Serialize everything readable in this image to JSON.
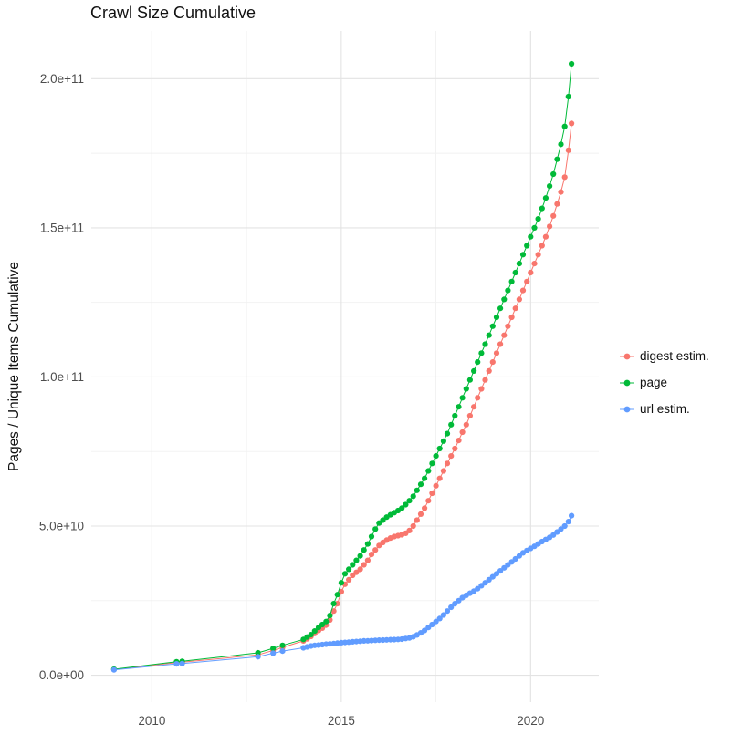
{
  "chart_data": {
    "type": "line",
    "title": "Crawl Size Cumulative",
    "xlabel": "",
    "ylabel": "Pages / Unique Items Cumulative",
    "legend_position": "right",
    "grid": true,
    "xlim": [
      2008.4,
      2021.8
    ],
    "ylim": [
      -9000000000.0,
      216000000000.0
    ],
    "x_ticks": [
      2010,
      2015,
      2020
    ],
    "x_tick_labels": [
      "2010",
      "2015",
      "2020"
    ],
    "x_minor_ticks": [
      2012.5,
      2017.5
    ],
    "y_ticks": [
      0,
      50000000000.0,
      100000000000.0,
      150000000000.0,
      200000000000.0
    ],
    "y_tick_labels": [
      "0.0e+00",
      "5.0e+10",
      "1.0e+11",
      "1.5e+11",
      "2.0e+11"
    ],
    "y_minor_ticks": [
      25000000000.0,
      75000000000.0,
      125000000000.0,
      175000000000.0
    ],
    "colors": {
      "major_grid": "#e3e3e3",
      "minor_grid": "#f1f1f1",
      "tick_label": "#4d4d4d"
    },
    "y_unit": 1000000000.0,
    "series": [
      {
        "id": "digest-estim",
        "name": "digest estim.",
        "color": "#F8766D",
        "points": [
          [
            2009.0,
            1.9
          ],
          [
            2010.65,
            4.2
          ],
          [
            2010.8,
            4.35
          ],
          [
            2012.8,
            6.8
          ],
          [
            2013.2,
            8.3
          ],
          [
            2013.45,
            9.3
          ],
          [
            2014.0,
            11.5
          ],
          [
            2014.1,
            12.2
          ],
          [
            2014.2,
            13
          ],
          [
            2014.3,
            14
          ],
          [
            2014.4,
            15
          ],
          [
            2014.5,
            15.8
          ],
          [
            2014.6,
            16.8
          ],
          [
            2014.7,
            18.5
          ],
          [
            2014.8,
            21.5
          ],
          [
            2014.9,
            24
          ],
          [
            2015.0,
            28
          ],
          [
            2015.1,
            30.5
          ],
          [
            2015.2,
            32
          ],
          [
            2015.3,
            33.5
          ],
          [
            2015.4,
            34.5
          ],
          [
            2015.5,
            35.5
          ],
          [
            2015.6,
            37
          ],
          [
            2015.7,
            38.5
          ],
          [
            2015.8,
            40.5
          ],
          [
            2015.9,
            42
          ],
          [
            2016.0,
            43.5
          ],
          [
            2016.1,
            44.5
          ],
          [
            2016.2,
            45.3
          ],
          [
            2016.3,
            46
          ],
          [
            2016.4,
            46.5
          ],
          [
            2016.5,
            46.8
          ],
          [
            2016.6,
            47.1
          ],
          [
            2016.7,
            47.6
          ],
          [
            2016.8,
            48.5
          ],
          [
            2016.9,
            50
          ],
          [
            2017.0,
            52
          ],
          [
            2017.1,
            54
          ],
          [
            2017.2,
            56
          ],
          [
            2017.3,
            58.5
          ],
          [
            2017.4,
            61
          ],
          [
            2017.5,
            63.5
          ],
          [
            2017.6,
            66
          ],
          [
            2017.7,
            68.5
          ],
          [
            2017.8,
            71
          ],
          [
            2017.9,
            73.5
          ],
          [
            2018.0,
            76
          ],
          [
            2018.1,
            78.7
          ],
          [
            2018.2,
            81.5
          ],
          [
            2018.3,
            84
          ],
          [
            2018.4,
            87
          ],
          [
            2018.5,
            90
          ],
          [
            2018.6,
            93
          ],
          [
            2018.7,
            96
          ],
          [
            2018.8,
            99
          ],
          [
            2018.9,
            102
          ],
          [
            2019.0,
            105
          ],
          [
            2019.1,
            108
          ],
          [
            2019.2,
            111
          ],
          [
            2019.3,
            114
          ],
          [
            2019.4,
            117
          ],
          [
            2019.5,
            120
          ],
          [
            2019.6,
            123
          ],
          [
            2019.7,
            126
          ],
          [
            2019.8,
            129
          ],
          [
            2019.9,
            132
          ],
          [
            2020.0,
            135
          ],
          [
            2020.1,
            138
          ],
          [
            2020.2,
            141
          ],
          [
            2020.3,
            144
          ],
          [
            2020.4,
            147
          ],
          [
            2020.5,
            150.5
          ],
          [
            2020.6,
            154
          ],
          [
            2020.7,
            158
          ],
          [
            2020.8,
            162
          ],
          [
            2020.9,
            167
          ],
          [
            2021.0,
            176
          ],
          [
            2021.08,
            185
          ]
        ]
      },
      {
        "id": "page",
        "name": "page",
        "color": "#00BA38",
        "points": [
          [
            2009.0,
            2.0
          ],
          [
            2010.65,
            4.5
          ],
          [
            2010.8,
            4.65
          ],
          [
            2012.8,
            7.5
          ],
          [
            2013.2,
            9.0
          ],
          [
            2013.45,
            10.0
          ],
          [
            2014.0,
            12
          ],
          [
            2014.1,
            12.8
          ],
          [
            2014.2,
            13.6
          ],
          [
            2014.3,
            14.8
          ],
          [
            2014.4,
            16
          ],
          [
            2014.5,
            17
          ],
          [
            2014.6,
            18
          ],
          [
            2014.7,
            20
          ],
          [
            2014.8,
            24
          ],
          [
            2014.9,
            27
          ],
          [
            2015.0,
            31
          ],
          [
            2015.1,
            34
          ],
          [
            2015.2,
            35.5
          ],
          [
            2015.3,
            37
          ],
          [
            2015.4,
            38.5
          ],
          [
            2015.5,
            40
          ],
          [
            2015.6,
            42
          ],
          [
            2015.7,
            44
          ],
          [
            2015.8,
            46.5
          ],
          [
            2015.9,
            49
          ],
          [
            2016.0,
            51
          ],
          [
            2016.1,
            52
          ],
          [
            2016.2,
            53
          ],
          [
            2016.3,
            53.8
          ],
          [
            2016.4,
            54.5
          ],
          [
            2016.5,
            55.2
          ],
          [
            2016.6,
            56
          ],
          [
            2016.7,
            57.2
          ],
          [
            2016.8,
            58.5
          ],
          [
            2016.9,
            60
          ],
          [
            2017.0,
            62
          ],
          [
            2017.1,
            64
          ],
          [
            2017.2,
            66
          ],
          [
            2017.3,
            68.5
          ],
          [
            2017.4,
            71
          ],
          [
            2017.5,
            73.5
          ],
          [
            2017.6,
            76
          ],
          [
            2017.7,
            78.5
          ],
          [
            2017.8,
            81
          ],
          [
            2017.9,
            84
          ],
          [
            2018.0,
            87
          ],
          [
            2018.1,
            90
          ],
          [
            2018.2,
            93
          ],
          [
            2018.3,
            96
          ],
          [
            2018.4,
            99
          ],
          [
            2018.5,
            102
          ],
          [
            2018.6,
            105
          ],
          [
            2018.7,
            108
          ],
          [
            2018.8,
            111
          ],
          [
            2018.9,
            114
          ],
          [
            2019.0,
            117
          ],
          [
            2019.1,
            120
          ],
          [
            2019.2,
            123
          ],
          [
            2019.3,
            126
          ],
          [
            2019.4,
            129
          ],
          [
            2019.5,
            132
          ],
          [
            2019.6,
            135
          ],
          [
            2019.7,
            138
          ],
          [
            2019.8,
            141
          ],
          [
            2019.9,
            144
          ],
          [
            2020.0,
            147
          ],
          [
            2020.1,
            150
          ],
          [
            2020.2,
            153
          ],
          [
            2020.3,
            156.5
          ],
          [
            2020.4,
            160
          ],
          [
            2020.5,
            164
          ],
          [
            2020.6,
            168
          ],
          [
            2020.7,
            173
          ],
          [
            2020.8,
            178
          ],
          [
            2020.9,
            184
          ],
          [
            2021.0,
            194
          ],
          [
            2021.08,
            205
          ]
        ]
      },
      {
        "id": "url-estim",
        "name": "url estim.",
        "color": "#619CFF",
        "points": [
          [
            2009.0,
            1.8
          ],
          [
            2010.65,
            3.8
          ],
          [
            2010.8,
            3.9
          ],
          [
            2012.8,
            6.2
          ],
          [
            2013.2,
            7.4
          ],
          [
            2013.45,
            8.1
          ],
          [
            2014.0,
            9.2
          ],
          [
            2014.1,
            9.5
          ],
          [
            2014.2,
            9.8
          ],
          [
            2014.3,
            10.0
          ],
          [
            2014.4,
            10.1
          ],
          [
            2014.5,
            10.25
          ],
          [
            2014.6,
            10.4
          ],
          [
            2014.7,
            10.5
          ],
          [
            2014.8,
            10.6
          ],
          [
            2014.9,
            10.75
          ],
          [
            2015.0,
            10.9
          ],
          [
            2015.1,
            11.0
          ],
          [
            2015.2,
            11.1
          ],
          [
            2015.3,
            11.2
          ],
          [
            2015.4,
            11.3
          ],
          [
            2015.5,
            11.4
          ],
          [
            2015.6,
            11.5
          ],
          [
            2015.7,
            11.55
          ],
          [
            2015.8,
            11.6
          ],
          [
            2015.9,
            11.7
          ],
          [
            2016.0,
            11.75
          ],
          [
            2016.1,
            11.8
          ],
          [
            2016.2,
            11.85
          ],
          [
            2016.3,
            11.9
          ],
          [
            2016.4,
            11.95
          ],
          [
            2016.5,
            12.0
          ],
          [
            2016.6,
            12.1
          ],
          [
            2016.7,
            12.3
          ],
          [
            2016.8,
            12.5
          ],
          [
            2016.9,
            12.9
          ],
          [
            2017.0,
            13.5
          ],
          [
            2017.1,
            14.2
          ],
          [
            2017.2,
            15
          ],
          [
            2017.3,
            16
          ],
          [
            2017.4,
            17
          ],
          [
            2017.5,
            18
          ],
          [
            2017.6,
            19
          ],
          [
            2017.7,
            20.2
          ],
          [
            2017.8,
            21.5
          ],
          [
            2017.9,
            22.8
          ],
          [
            2018.0,
            24
          ],
          [
            2018.1,
            25
          ],
          [
            2018.2,
            26
          ],
          [
            2018.3,
            26.8
          ],
          [
            2018.4,
            27.5
          ],
          [
            2018.5,
            28.2
          ],
          [
            2018.6,
            29
          ],
          [
            2018.7,
            30
          ],
          [
            2018.8,
            31
          ],
          [
            2018.9,
            32
          ],
          [
            2019.0,
            33
          ],
          [
            2019.1,
            34
          ],
          [
            2019.2,
            35
          ],
          [
            2019.3,
            36
          ],
          [
            2019.4,
            37
          ],
          [
            2019.5,
            38
          ],
          [
            2019.6,
            39
          ],
          [
            2019.7,
            40
          ],
          [
            2019.8,
            41
          ],
          [
            2019.9,
            41.8
          ],
          [
            2020.0,
            42.5
          ],
          [
            2020.1,
            43.2
          ],
          [
            2020.2,
            44
          ],
          [
            2020.3,
            44.8
          ],
          [
            2020.4,
            45.5
          ],
          [
            2020.5,
            46.2
          ],
          [
            2020.6,
            47
          ],
          [
            2020.7,
            48
          ],
          [
            2020.8,
            49
          ],
          [
            2020.9,
            50
          ],
          [
            2021.0,
            51.5
          ],
          [
            2021.08,
            53.5
          ]
        ]
      }
    ]
  }
}
